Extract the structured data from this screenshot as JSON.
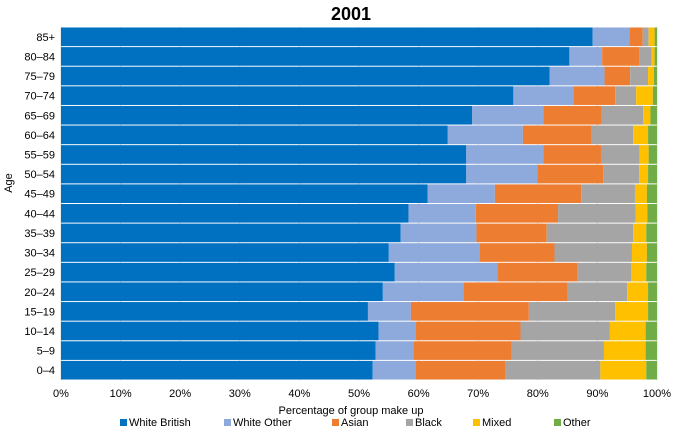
{
  "chart_data": {
    "type": "bar",
    "orientation": "horizontal",
    "stacked": true,
    "title": "2001",
    "xlabel": "Percentage of group make up",
    "ylabel": "Age",
    "xlim": [
      0,
      100
    ],
    "x_ticks": [
      "0%",
      "10%",
      "20%",
      "30%",
      "40%",
      "50%",
      "60%",
      "70%",
      "80%",
      "90%",
      "100%"
    ],
    "grid": true,
    "legend_position": "bottom",
    "categories": [
      "85+",
      "80–84",
      "75–79",
      "70–74",
      "65–69",
      "60–64",
      "55–59",
      "50–54",
      "45–49",
      "40–44",
      "35–39",
      "30–34",
      "25–29",
      "20–24",
      "15–19",
      "10–14",
      "5–9",
      "0–4"
    ],
    "series": [
      {
        "name": "White British",
        "color": "#0070C0",
        "values": [
          89.2,
          85.3,
          82.0,
          75.9,
          69.0,
          64.9,
          68.0,
          68.0,
          61.5,
          58.3,
          57.0,
          55.0,
          56.0,
          54.0,
          51.5,
          53.3,
          52.8,
          52.3
        ]
      },
      {
        "name": "White Other",
        "color": "#8EA9DB",
        "values": [
          6.2,
          5.5,
          9.2,
          10.1,
          11.9,
          12.6,
          12.9,
          11.9,
          11.3,
          11.3,
          12.7,
          15.3,
          17.2,
          13.5,
          7.2,
          6.2,
          6.3,
          7.2
        ]
      },
      {
        "name": "Asian",
        "color": "#ED7D31",
        "values": [
          2.2,
          6.3,
          4.3,
          7.0,
          9.8,
          11.5,
          9.7,
          11.1,
          14.5,
          13.8,
          11.8,
          12.5,
          13.5,
          17.5,
          19.8,
          17.6,
          16.5,
          15.0
        ]
      },
      {
        "name": "Black",
        "color": "#A5A5A5",
        "values": [
          1.0,
          2.0,
          3.0,
          3.5,
          7.0,
          7.0,
          6.5,
          6.0,
          9.0,
          13.0,
          14.5,
          13.0,
          9.0,
          10.0,
          14.5,
          15.0,
          15.5,
          16.0
        ]
      },
      {
        "name": "Mixed",
        "color": "#FFC000",
        "values": [
          1.0,
          0.5,
          1.0,
          2.8,
          1.2,
          2.5,
          1.5,
          1.5,
          2.0,
          2.0,
          2.2,
          2.5,
          2.5,
          3.5,
          5.5,
          6.0,
          7.0,
          7.7
        ]
      },
      {
        "name": "Other",
        "color": "#70AD47",
        "values": [
          0.4,
          0.4,
          0.5,
          0.7,
          1.1,
          1.5,
          1.4,
          1.5,
          1.7,
          1.6,
          1.8,
          1.7,
          1.8,
          1.5,
          1.5,
          1.9,
          1.9,
          1.8
        ]
      }
    ]
  }
}
